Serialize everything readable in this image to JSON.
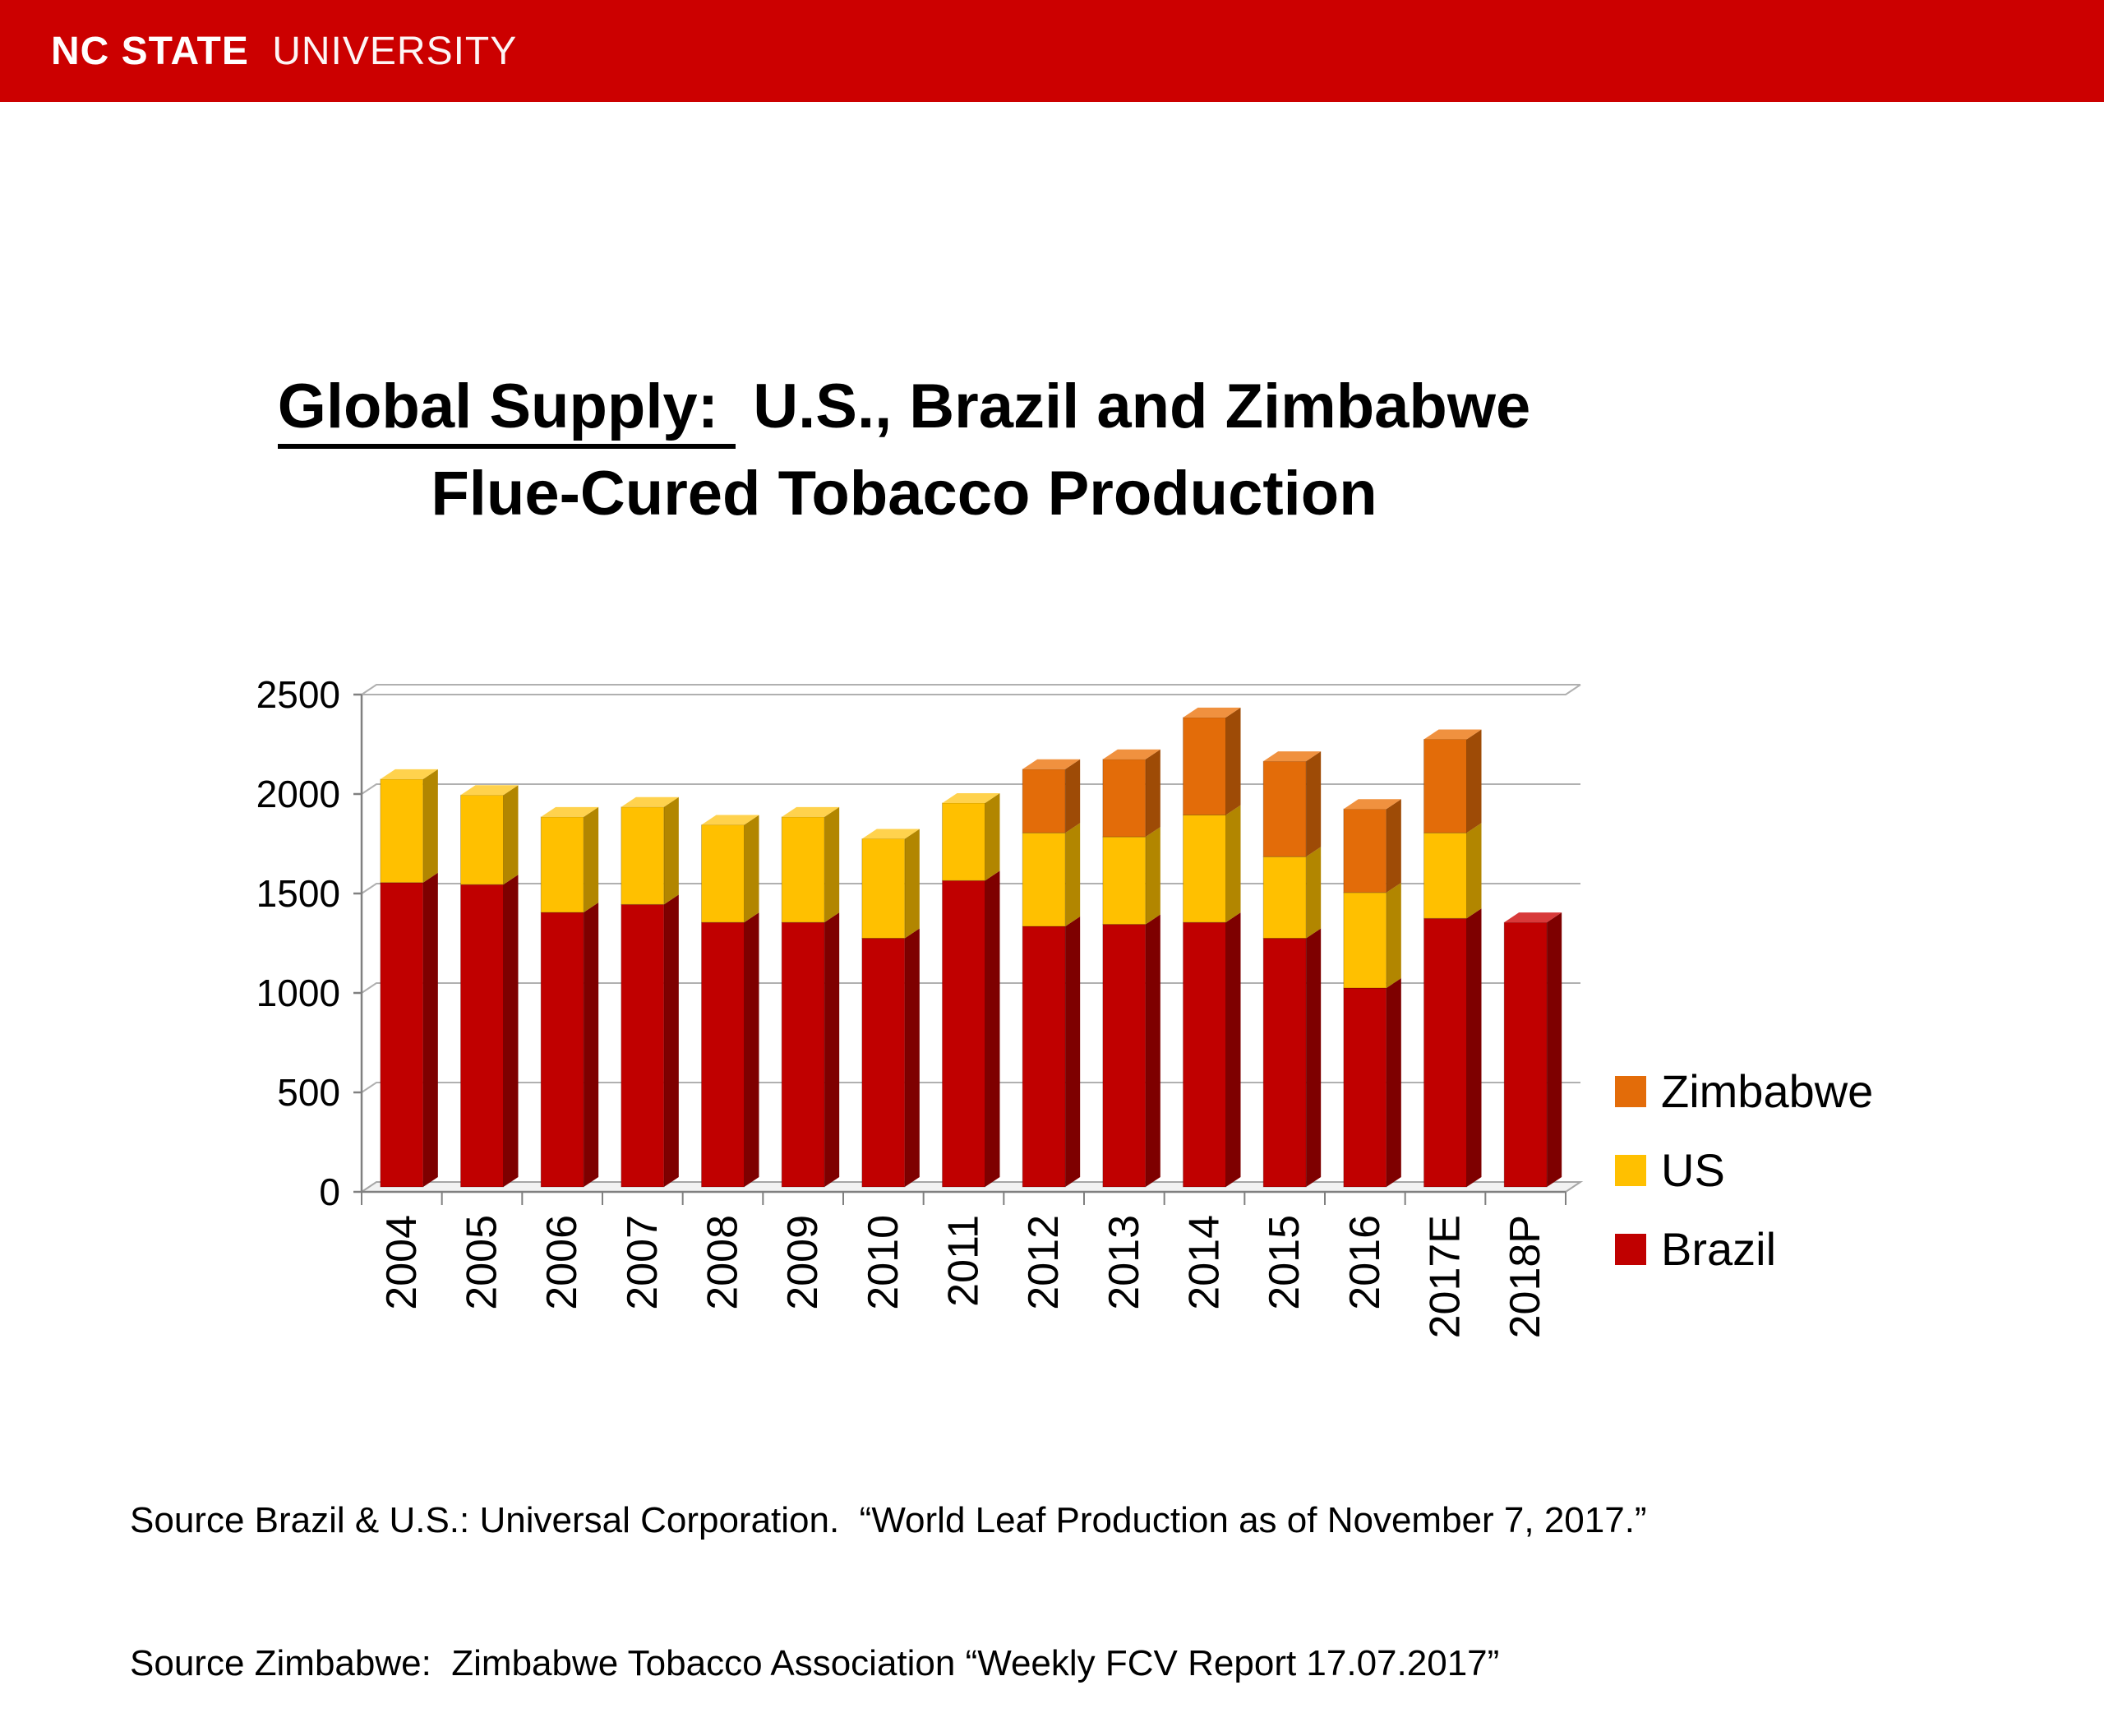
{
  "header": {
    "brand_bold": "NC STATE",
    "brand_light": "UNIVERSITY",
    "bg_color": "#CC0000"
  },
  "title": {
    "underlined_part": "Global Supply: ",
    "rest_line1": " U.S., Brazil and Zimbabwe",
    "line2": "Flue-Cured Tobacco Production"
  },
  "chart_data": {
    "type": "bar",
    "stacked": true,
    "style": "3d-stacked-column",
    "categories": [
      "2004",
      "2005",
      "2006",
      "2007",
      "2008",
      "2009",
      "2010",
      "2011",
      "2012",
      "2013",
      "2014",
      "2015",
      "2016",
      "2017E",
      "2018P"
    ],
    "series": [
      {
        "name": "Brazil",
        "color": "#C00000",
        "side_color": "#7E0000",
        "top_color": "#D83A3A",
        "values": [
          1530,
          1520,
          1380,
          1420,
          1330,
          1330,
          1250,
          1540,
          1310,
          1320,
          1330,
          1250,
          1000,
          1350,
          1330
        ]
      },
      {
        "name": "US",
        "color": "#FFC000",
        "side_color": "#B28600",
        "top_color": "#FFD24D",
        "values": [
          520,
          450,
          480,
          490,
          490,
          530,
          500,
          390,
          470,
          440,
          540,
          410,
          480,
          430,
          0
        ]
      },
      {
        "name": "Zimbabwe",
        "color": "#E36C09",
        "side_color": "#9E4B06",
        "top_color": "#F0913F",
        "values": [
          0,
          0,
          0,
          0,
          0,
          0,
          0,
          0,
          320,
          390,
          490,
          480,
          420,
          470,
          0
        ]
      }
    ],
    "totals": [
      2050,
      1970,
      1860,
      1910,
      1820,
      1860,
      1750,
      1930,
      2100,
      2150,
      2360,
      2140,
      1900,
      2250,
      1330
    ],
    "ylim": [
      0,
      2500
    ],
    "yticks": [
      0,
      500,
      1000,
      1500,
      2000,
      2500
    ],
    "grid": true,
    "legend_position": "right",
    "legend_order": [
      "Zimbabwe",
      "US",
      "Brazil"
    ]
  },
  "source": {
    "line1": "Source Brazil & U.S.: Universal Corporation.  “World Leaf Production as of November 7, 2017.”",
    "line2": "Source Zimbabwe:  Zimbabwe Tobacco Association “Weekly FCV Report 17.07.2017”"
  }
}
